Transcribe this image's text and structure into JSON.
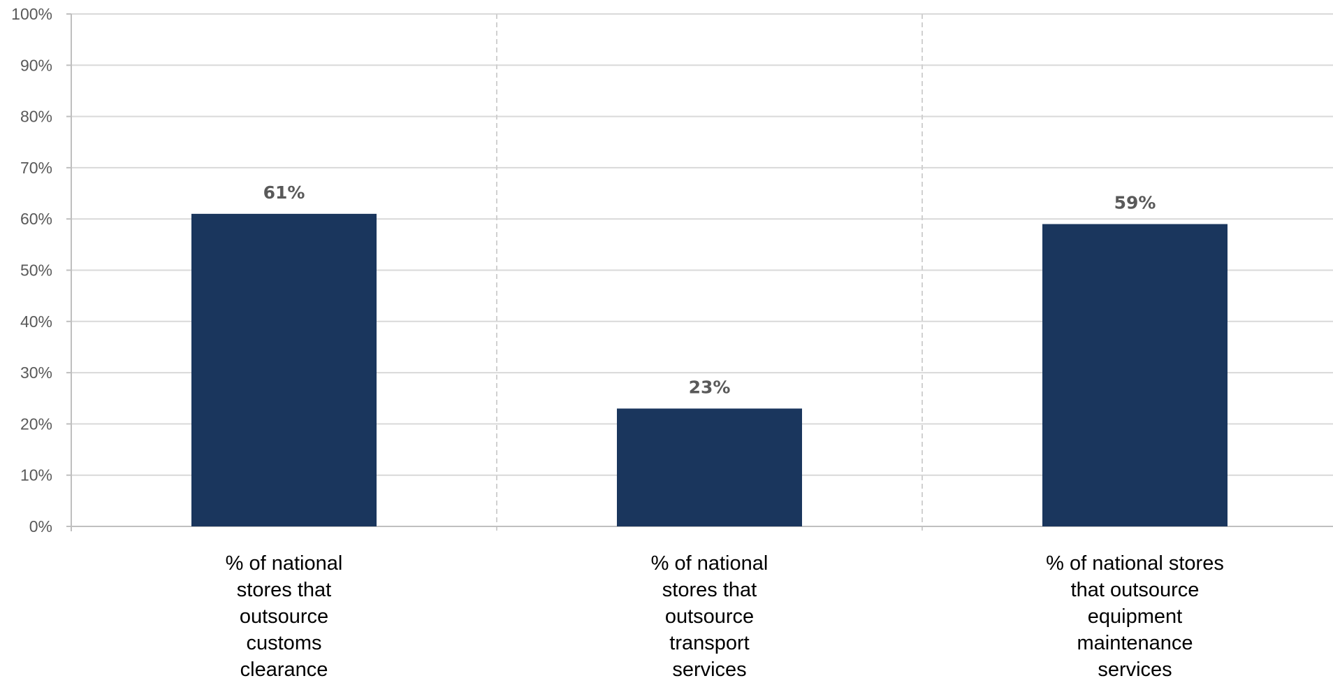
{
  "chart_data": {
    "type": "bar",
    "categories": [
      "% of national stores that outsource customs clearance",
      "% of national stores that outsource transport services",
      "% of national stores that outsource equipment maintenance services"
    ],
    "category_lines": [
      [
        "% of national",
        "stores that",
        "outsource",
        "customs",
        "clearance"
      ],
      [
        "% of national",
        "stores that",
        "outsource",
        "transport",
        "services"
      ],
      [
        "% of national stores",
        "that outsource",
        "equipment",
        "maintenance",
        "services"
      ]
    ],
    "values": [
      61,
      23,
      59
    ],
    "data_labels": [
      "61%",
      "23%",
      "59%"
    ],
    "y_ticks": [
      "0%",
      "10%",
      "20%",
      "30%",
      "40%",
      "50%",
      "60%",
      "70%",
      "80%",
      "90%",
      "100%"
    ],
    "ylim": [
      0,
      100
    ],
    "title": "",
    "xlabel": "",
    "ylabel": "",
    "grid": true,
    "legend": "none",
    "bar_color": "#1a365d",
    "gridline_color": "#d9d9d9",
    "text_color": "#595959"
  }
}
